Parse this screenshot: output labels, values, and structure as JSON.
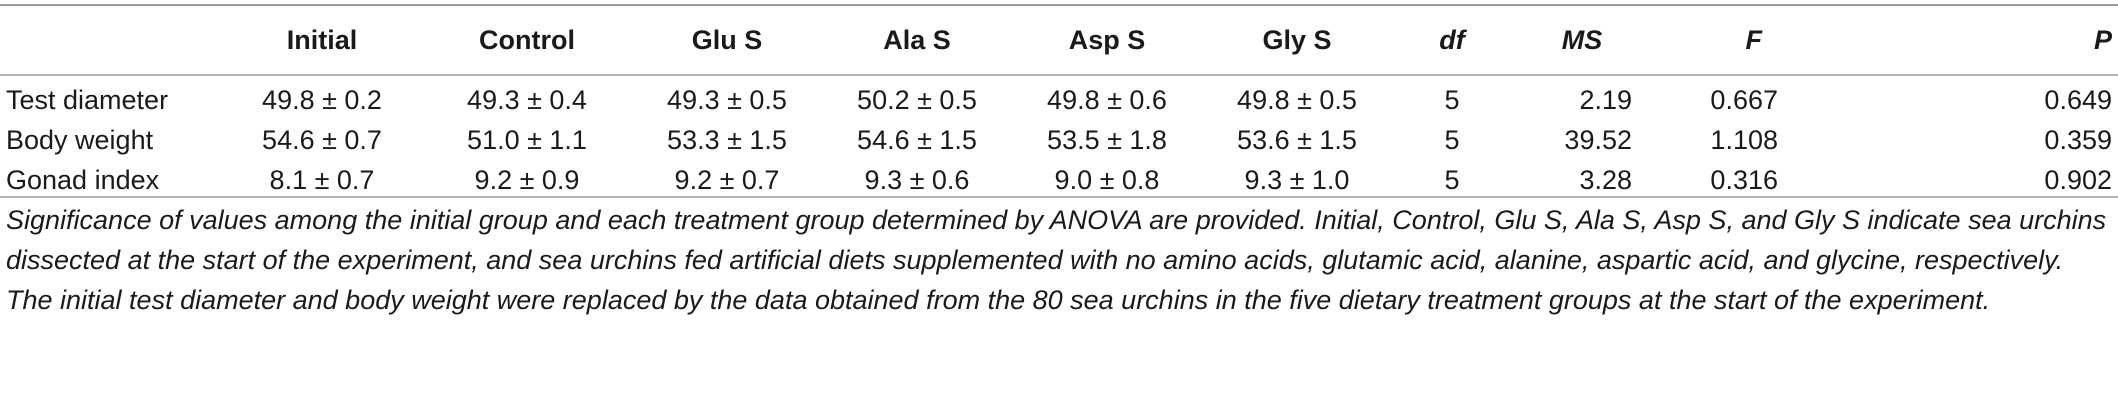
{
  "table": {
    "columns": [
      "",
      "Initial",
      "Control",
      "Glu S",
      "Ala S",
      "Asp S",
      "Gly S",
      "df",
      "MS",
      "F",
      "P"
    ],
    "rows": [
      {
        "label": "Test diameter",
        "initial": "49.8 ± 0.2",
        "control": "49.3 ± 0.4",
        "glu_s": "49.3 ± 0.5",
        "ala_s": "50.2 ± 0.5",
        "asp_s": "49.8 ± 0.6",
        "gly_s": "49.8 ± 0.5",
        "df": "5",
        "ms": "2.19",
        "f": "0.667",
        "p": "0.649"
      },
      {
        "label": "Body weight",
        "initial": "54.6 ± 0.7",
        "control": "51.0 ± 1.1",
        "glu_s": "53.3 ± 1.5",
        "ala_s": "54.6 ± 1.5",
        "asp_s": "53.5 ± 1.8",
        "gly_s": "53.6 ± 1.5",
        "df": "5",
        "ms": "39.52",
        "f": "1.108",
        "p": "0.359"
      },
      {
        "label": "Gonad index",
        "initial": "8.1 ± 0.7",
        "control": "9.2 ± 0.9",
        "glu_s": "9.2 ± 0.7",
        "ala_s": "9.3 ± 0.6",
        "asp_s": "9.0 ± 0.8",
        "gly_s": "9.3 ± 1.0",
        "df": "5",
        "ms": "3.28",
        "f": "0.316",
        "p": "0.902"
      }
    ]
  },
  "caption": "Significance of values among the initial group and each treatment group determined by ANOVA are provided. Initial, Control, Glu S, Ala S, Asp S, and Gly S indicate sea urchins dissected at the start of the experiment, and sea urchins fed artificial diets supplemented with no amino acids, glutamic acid, alanine, aspartic acid, and glycine, respectively. The initial test diameter and body weight were replaced by the data obtained from the 80 sea urchins in the five dietary treatment groups at the start of the experiment."
}
